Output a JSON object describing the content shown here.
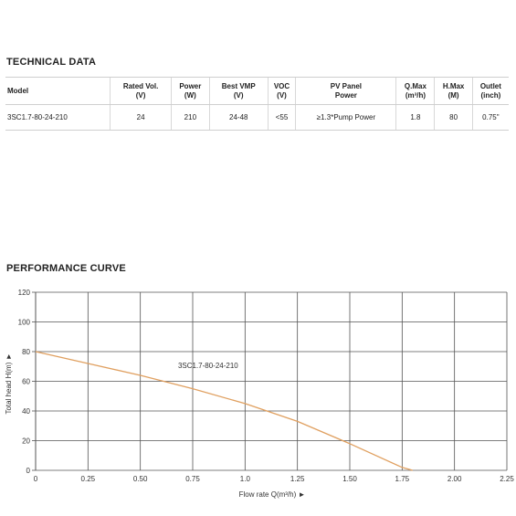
{
  "technical_data": {
    "title": "TECHNICAL DATA",
    "headers": [
      [
        "Model"
      ],
      [
        "Rated Vol.",
        "(V)"
      ],
      [
        "Power",
        "(W)"
      ],
      [
        "Best VMP",
        "(V)"
      ],
      [
        "VOC",
        "(V)"
      ],
      [
        "PV Panel",
        "Power"
      ],
      [
        "Q.Max",
        "(m³/h)"
      ],
      [
        "H.Max",
        "(M)"
      ],
      [
        "Outlet",
        "(inch)"
      ]
    ],
    "rows": [
      [
        "3SC1.7-80-24-210",
        "24",
        "210",
        "24-48",
        "<55",
        "≥1.3*Pump Power",
        "1.8",
        "80",
        "0.75\""
      ]
    ]
  },
  "performance": {
    "title": "PERFORMANCE CURVE"
  },
  "chart_data": {
    "type": "line",
    "title": "",
    "xlabel": "Flow rate Q(m³/h) ►",
    "ylabel": "Total head H(m) ►",
    "xlim": [
      0,
      2.25
    ],
    "ylim": [
      0,
      120
    ],
    "x_ticks": [
      "0",
      "0.25",
      "0.50",
      "0.75",
      "1.0",
      "1.25",
      "1.50",
      "1.75",
      "2.00",
      "2.25"
    ],
    "y_ticks": [
      "0",
      "20",
      "40",
      "60",
      "80",
      "100",
      "120"
    ],
    "grid": true,
    "line_color": "#e0a060",
    "series": [
      {
        "name": "3SC1.7-80-24-210",
        "x": [
          0,
          0.25,
          0.5,
          0.75,
          1.0,
          1.25,
          1.5,
          1.75,
          1.8
        ],
        "y": [
          80,
          72,
          64,
          55,
          45,
          33,
          18,
          2,
          0
        ]
      }
    ]
  }
}
